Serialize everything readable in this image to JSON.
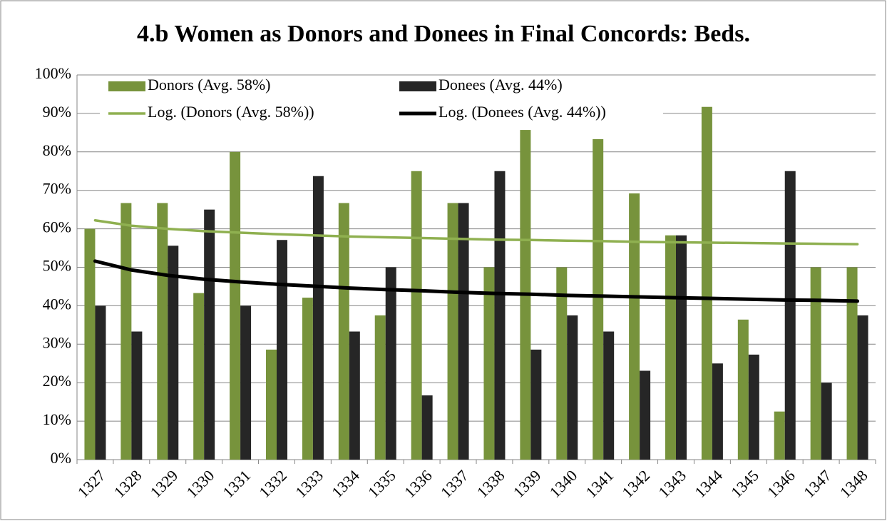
{
  "chart_data": {
    "type": "bar",
    "title": "4.b Women as Donors and Donees in Final Concords: Beds.",
    "categories": [
      "1327",
      "1328",
      "1329",
      "1330",
      "1331",
      "1332",
      "1333",
      "1334",
      "1335",
      "1336",
      "1337",
      "1338",
      "1339",
      "1340",
      "1341",
      "1342",
      "1343",
      "1344",
      "1345",
      "1346",
      "1347",
      "1348"
    ],
    "series": [
      {
        "name": "Donors (Avg. 58%)",
        "type": "bar",
        "color": "#77933c",
        "values": [
          60,
          66.7,
          66.7,
          43.3,
          80,
          28.6,
          42.1,
          66.7,
          37.5,
          75,
          66.7,
          50,
          85.7,
          50,
          83.3,
          69.2,
          58.3,
          91.7,
          36.4,
          12.5,
          50,
          50
        ]
      },
      {
        "name": "Donees (Avg. 44%)",
        "type": "bar",
        "color": "#262626",
        "values": [
          40,
          33.3,
          55.6,
          65,
          40,
          57.1,
          73.7,
          33.3,
          50,
          16.7,
          66.7,
          75,
          28.6,
          37.5,
          33.3,
          23.1,
          58.3,
          25,
          27.3,
          75,
          20,
          37.5
        ]
      },
      {
        "name": "Log. (Donors (Avg. 58%))",
        "type": "line",
        "color": "#8fb050",
        "values": [
          62.2,
          60.8,
          60.0,
          59.4,
          59.0,
          58.6,
          58.3,
          58.0,
          57.8,
          57.6,
          57.4,
          57.2,
          57.1,
          56.9,
          56.8,
          56.6,
          56.5,
          56.4,
          56.3,
          56.2,
          56.1,
          56.0
        ]
      },
      {
        "name": "Log. (Donees (Avg. 44%))",
        "type": "line",
        "color": "#000000",
        "values": [
          51.6,
          49.3,
          47.9,
          46.9,
          46.2,
          45.6,
          45.1,
          44.6,
          44.2,
          43.9,
          43.5,
          43.2,
          43.0,
          42.7,
          42.5,
          42.3,
          42.1,
          41.9,
          41.7,
          41.5,
          41.4,
          41.2
        ]
      }
    ],
    "ylim": [
      0,
      100
    ],
    "yticks": [
      {
        "value": 0,
        "label": "0%"
      },
      {
        "value": 10,
        "label": "10%"
      },
      {
        "value": 20,
        "label": "20%"
      },
      {
        "value": 30,
        "label": "30%"
      },
      {
        "value": 40,
        "label": "40%"
      },
      {
        "value": 50,
        "label": "50%"
      },
      {
        "value": 60,
        "label": "60%"
      },
      {
        "value": 70,
        "label": "70%"
      },
      {
        "value": 80,
        "label": "80%"
      },
      {
        "value": 90,
        "label": "90%"
      },
      {
        "value": 100,
        "label": "100%"
      }
    ],
    "grid": true,
    "legend": "top-left"
  }
}
